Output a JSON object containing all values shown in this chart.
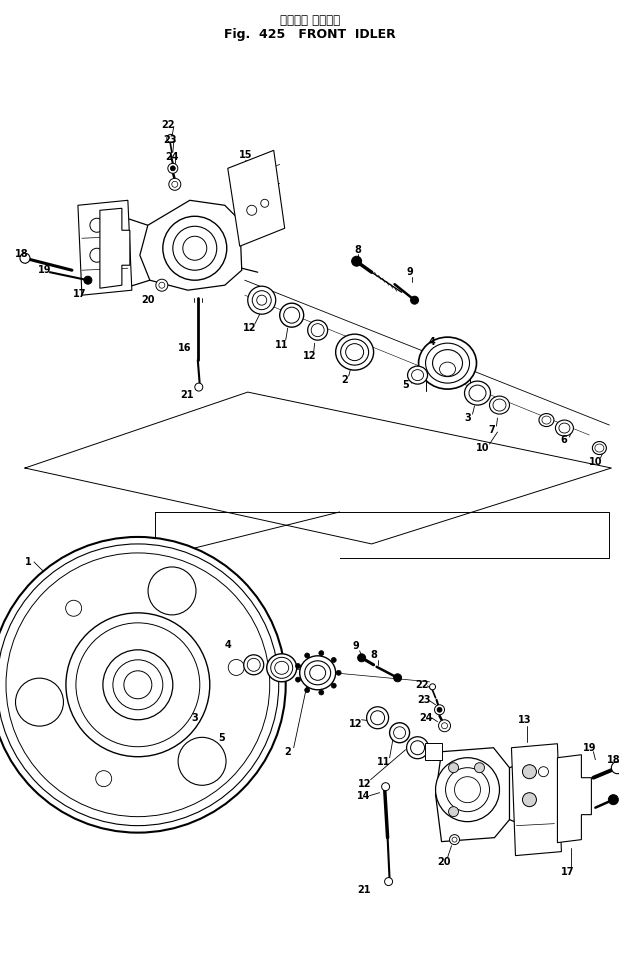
{
  "title_japanese": "フロント アイドラ",
  "title_english": "Fig.  425   FRONT  IDLER",
  "bg_color": "#ffffff",
  "line_color": "#000000",
  "label_fontsize": 7,
  "title_fontsize": 8.5,
  "fig_width": 6.2,
  "fig_height": 9.59,
  "dpi": 100
}
